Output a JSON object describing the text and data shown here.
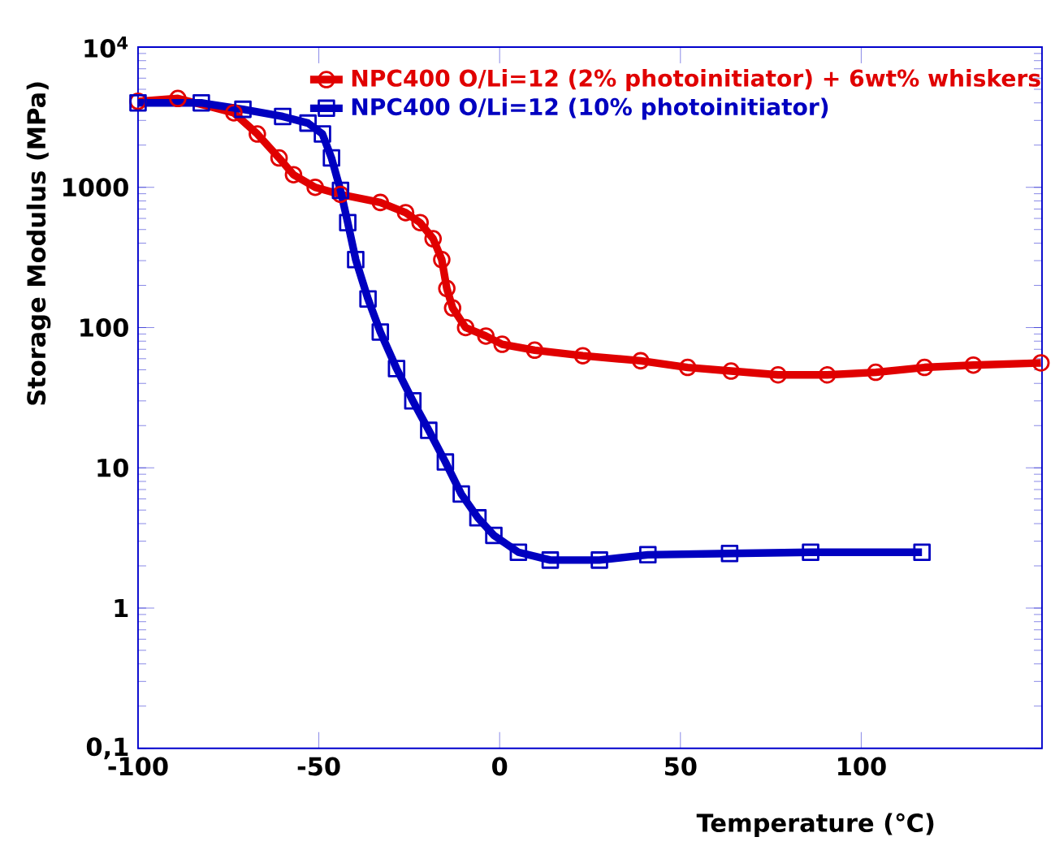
{
  "chart_data": {
    "type": "line",
    "xlabel": "Temperature (℃)",
    "ylabel": "Storage Modulus (MPa)",
    "log": "y",
    "xlim": [
      -100,
      150
    ],
    "ylim": [
      0.1,
      10000
    ],
    "xticks": [
      -100,
      -50,
      0,
      50,
      100
    ],
    "yticks": [
      {
        "value": 0.1,
        "label": "0,1"
      },
      1,
      10,
      100,
      1000,
      {
        "value": 10000,
        "label": "10$^{4}$"
      }
    ],
    "grid": false,
    "legend": "top right",
    "line_style": "solid",
    "series": [
      {
        "name": "NPC400 O/Li=12 (2% photoinitiator) + 6wt% whiskers",
        "color": "#e00000",
        "marker": "circle",
        "x": [
          -100,
          -89,
          -73.5,
          -67,
          -61,
          -57,
          -51,
          -44,
          -33,
          -26,
          -22,
          -18.4,
          -16,
          -14.6,
          -13,
          -9.4,
          -3.8,
          0.7,
          9.7,
          23,
          39,
          52,
          64,
          77,
          90.6,
          104,
          117.5,
          131,
          149.7
        ],
        "values": [
          4100,
          4300,
          3400,
          2400,
          1620,
          1230,
          1000,
          890,
          780,
          660,
          560,
          430,
          305,
          190,
          138,
          100,
          87,
          76,
          69,
          63,
          58,
          52,
          49,
          46,
          46,
          48,
          52,
          54,
          56
        ]
      },
      {
        "name": "NPC400 O/Li=12 (10% photoinitiator)",
        "color": "#0000c0",
        "marker": "square",
        "x": [
          -100,
          -82.5,
          -71,
          -60,
          -53,
          -49,
          -46.5,
          -44,
          -42,
          -39.8,
          -36.4,
          -33,
          -28.5,
          -24,
          -19.6,
          -15,
          -10.6,
          -6,
          -1.6,
          5.2,
          14,
          27.6,
          41,
          63.6,
          86,
          116.8
        ],
        "values": [
          4000,
          4000,
          3600,
          3200,
          2870,
          2400,
          1620,
          950,
          560,
          305,
          160,
          93,
          51,
          30,
          18.5,
          11,
          6.5,
          4.4,
          3.3,
          2.5,
          2.2,
          2.2,
          2.4,
          2.45,
          2.5,
          2.5
        ]
      }
    ]
  }
}
